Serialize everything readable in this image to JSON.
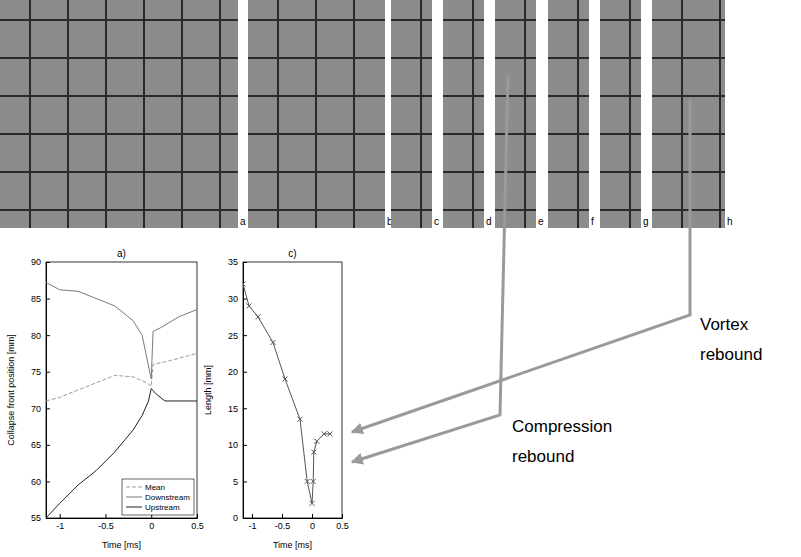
{
  "panels": {
    "labels": [
      "a",
      "b",
      "c",
      "d",
      "e",
      "f",
      "g",
      "h"
    ]
  },
  "annotations": [
    "Vortex rebound",
    "Compression rebound"
  ],
  "chart_data": [
    {
      "type": "line",
      "title": "a)",
      "x_label": "Time [ms]",
      "y_label": "Collapse front position [mm]",
      "xlim": [
        -1.15,
        0.5
      ],
      "xticks": [
        -1,
        -0.5,
        0,
        0.5
      ],
      "ylim": [
        55,
        90
      ],
      "yticks": [
        55,
        60,
        65,
        70,
        75,
        80,
        85,
        90
      ],
      "legend": "lower right",
      "series": [
        {
          "name": "Mean",
          "color": "#9a9a9a",
          "line_style": "dashed",
          "x": [
            -1.15,
            -1,
            -0.7,
            -0.4,
            -0.2,
            -0.05,
            0,
            0.02,
            0.2,
            0.5
          ],
          "values": [
            71,
            71.5,
            73,
            74.5,
            74.3,
            73.5,
            73,
            76,
            76.5,
            77.5
          ]
        },
        {
          "name": "Downstream",
          "color": "#7a7a7a",
          "line_style": "solid",
          "x": [
            -1.15,
            -1,
            -0.8,
            -0.6,
            -0.4,
            -0.2,
            -0.1,
            -0.05,
            0,
            0.02,
            0.1,
            0.3,
            0.5
          ],
          "values": [
            87.2,
            86.2,
            86,
            85,
            84,
            82,
            80,
            77,
            74,
            80.5,
            81,
            82.5,
            83.5
          ]
        },
        {
          "name": "Upstream",
          "color": "#222222",
          "line_style": "solid",
          "x": [
            -1.15,
            -1,
            -0.8,
            -0.6,
            -0.4,
            -0.2,
            -0.1,
            -0.03,
            0,
            0.05,
            0.15,
            0.3,
            0.5
          ],
          "values": [
            55,
            57,
            59.5,
            61.5,
            64,
            67,
            69,
            71,
            72.7,
            72,
            71,
            71,
            71
          ]
        }
      ]
    },
    {
      "type": "line",
      "title": "c)",
      "x_label": "Time [ms]",
      "y_label": "Length [mm]",
      "xlim": [
        -1.15,
        0.5
      ],
      "xticks": [
        -1,
        -0.5,
        0,
        0.5
      ],
      "ylim": [
        0,
        35
      ],
      "yticks": [
        0,
        5,
        10,
        15,
        20,
        25,
        30,
        35
      ],
      "series": [
        {
          "color": "#555555",
          "marker": "x",
          "line_style": "solid",
          "x": [
            -1.15,
            -1.05,
            -0.9,
            -0.65,
            -0.45,
            -0.2,
            -0.08,
            0,
            0.02,
            0.03,
            0.08,
            0.2,
            0.3
          ],
          "values": [
            32,
            29,
            27.5,
            24,
            19,
            13.5,
            5,
            2,
            5,
            9,
            10.5,
            11.5,
            11.5
          ]
        }
      ]
    }
  ]
}
